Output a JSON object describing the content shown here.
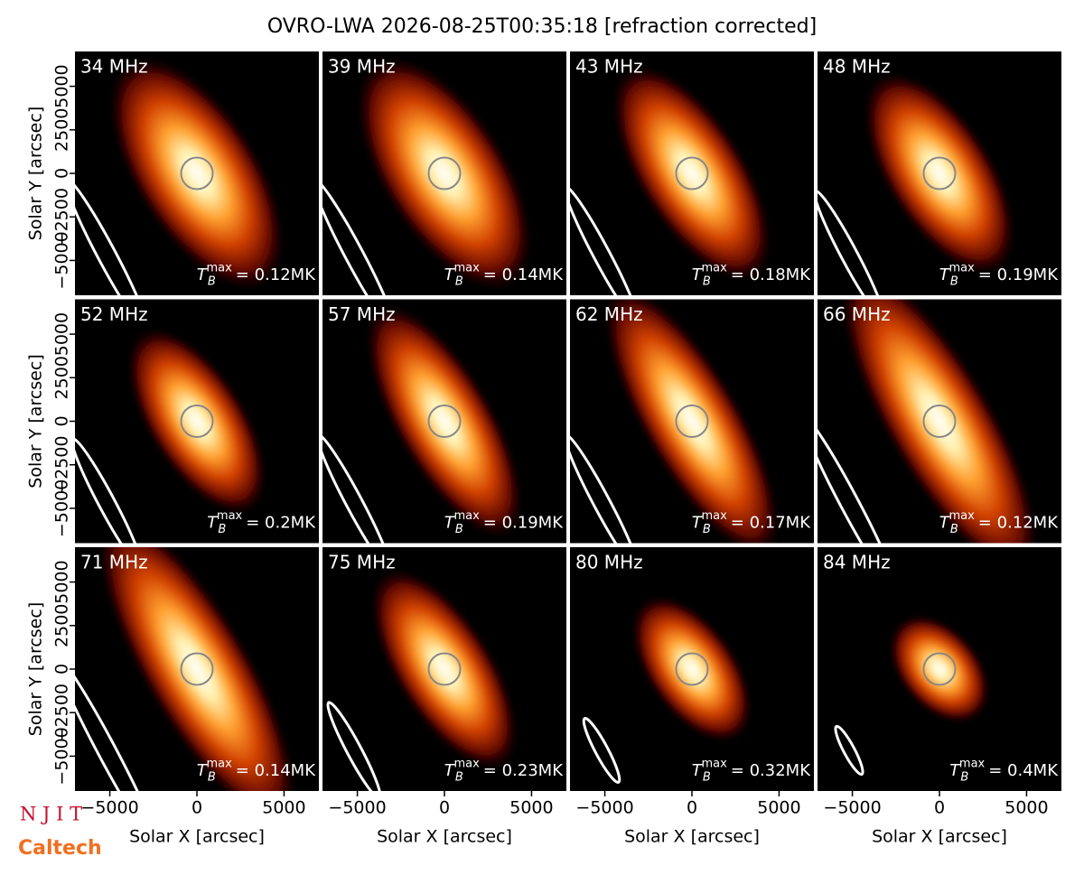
{
  "chart_data": {
    "type": "image-grid",
    "title": "OVRO-LWA 2026-08-25T00:35:18 [refraction corrected]",
    "xlabel": "Solar X [arcsec]",
    "ylabel": "Solar Y [arcsec]",
    "xlim": [
      -7000,
      7000
    ],
    "ylim": [
      -7000,
      7000
    ],
    "xticks": [
      {
        "value": -5000,
        "label": "−5000"
      },
      0,
      5000
    ],
    "yticks": [
      {
        "value": -5000,
        "label": "−5000"
      },
      {
        "value": -2500,
        "label": "−2500"
      },
      0,
      2500,
      5000
    ],
    "tmax_symbol": "T",
    "tmax_sub": "B",
    "tmax_sup": "max",
    "categories": [
      "34 MHz",
      "39 MHz",
      "43 MHz",
      "48 MHz",
      "52 MHz",
      "57 MHz",
      "62 MHz",
      "66 MHz",
      "71 MHz",
      "75 MHz",
      "80 MHz",
      "84 MHz"
    ],
    "value_labels": [
      "= 0.12MK",
      "= 0.14MK",
      "= 0.18MK",
      "= 0.19MK",
      "= 0.2MK",
      "= 0.19MK",
      "= 0.17MK",
      "= 0.12MK",
      "= 0.14MK",
      "= 0.23MK",
      "= 0.32MK",
      "= 0.4MK"
    ],
    "logos": [
      "N J I T",
      "Caltech"
    ]
  }
}
